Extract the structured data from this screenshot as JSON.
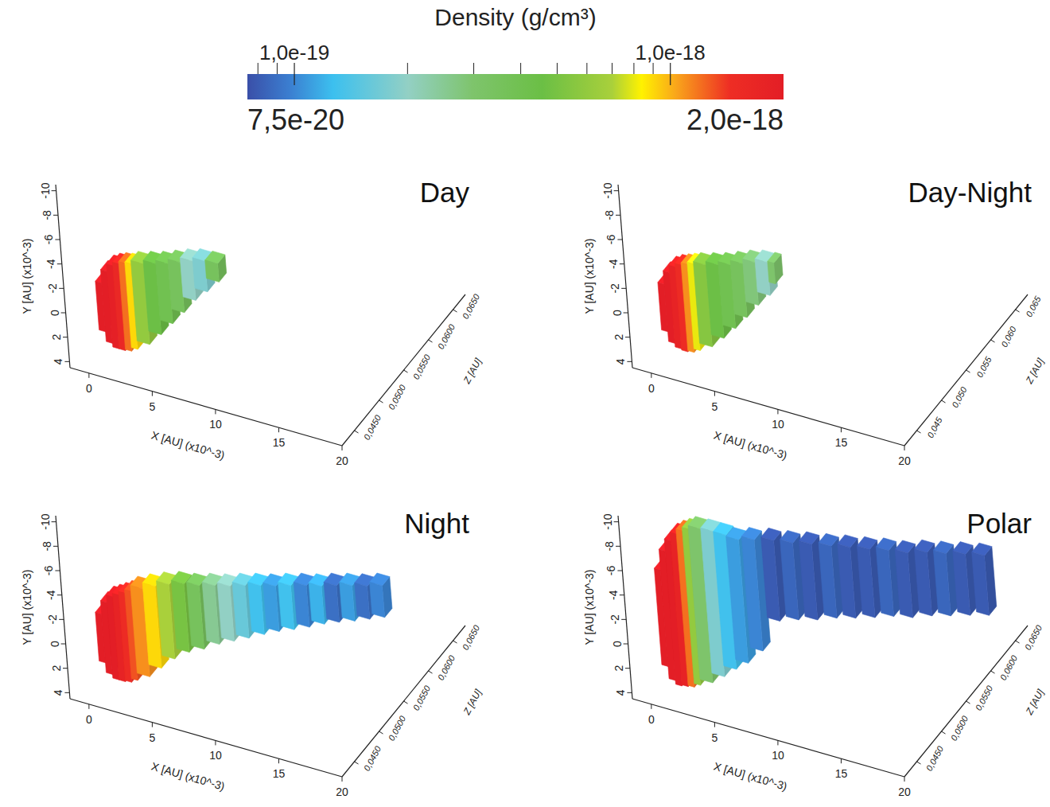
{
  "colorbar": {
    "title": "Density (g/cm³)",
    "log": true,
    "range": [
      7.5e-20,
      2e-18
    ],
    "ticks": [
      {
        "value": 1e-19,
        "label": "1,0e-19"
      },
      {
        "value": 1e-18,
        "label": "1,0e-18"
      }
    ],
    "minor_ticks": [
      8e-20,
      9e-20,
      2e-19,
      3e-19,
      4e-19,
      5e-19,
      6e-19,
      7e-19,
      8e-19,
      9e-19
    ],
    "end_ticks": [
      {
        "value": 7.5e-20,
        "label": "7,5e-20"
      },
      {
        "value": 2e-18,
        "label": "2,0e-18"
      }
    ]
  },
  "chart_data": [
    {
      "type": "voxel3d",
      "title": "Day",
      "xlabel": "X [AU] (x10^-3)",
      "ylabel": "Y [AU] (x10^-3)",
      "zlabel": "Z [AU]",
      "xlim": [
        -1.5,
        20
      ],
      "ylim": [
        -10.5,
        4.5
      ],
      "zlim": [
        0.0425,
        0.0675
      ],
      "xticks": [
        0,
        5,
        10,
        15,
        20
      ],
      "yticks": [
        -10,
        -8,
        -6,
        -4,
        -2,
        0,
        2,
        4
      ],
      "zticks": [
        {
          "value": 0.045,
          "label": "0,0450"
        },
        {
          "value": 0.05,
          "label": "0,0500"
        },
        {
          "value": 0.055,
          "label": "0,0550"
        },
        {
          "value": 0.06,
          "label": "0,0600"
        },
        {
          "value": 0.065,
          "label": "0,0650"
        }
      ],
      "x_edges": [
        0,
        0.5,
        1,
        1.5,
        2,
        2.5,
        3,
        4,
        5,
        6,
        7,
        8,
        9,
        10
      ],
      "y_lo": [
        -1.8,
        -2.9,
        -3.5,
        -3.8,
        -4.0,
        -4.1,
        -4.4,
        -4.7,
        -5.0,
        -5.4,
        -5.8,
        -6.1,
        -6.2
      ],
      "y_hi": [
        2.2,
        3.0,
        3.3,
        3.3,
        3.2,
        2.9,
        2.2,
        1.1,
        -0.1,
        -1.3,
        -2.6,
        -3.6,
        -4.7
      ],
      "z": [
        0.045,
        0.045,
        0.045,
        0.045,
        0.045,
        0.045,
        0.045,
        0.045,
        0.045,
        0.045,
        0.045,
        0.045,
        0.045
      ],
      "density": [
        2e-18,
        2e-18,
        1.9e-18,
        1.6e-18,
        1.2e-18,
        9e-19,
        6e-19,
        4.5e-19,
        4e-19,
        3.5e-19,
        2e-19,
        1.8e-19,
        3.5e-19
      ]
    },
    {
      "type": "voxel3d",
      "title": "Day-Night",
      "xlabel": "X [AU] (x10^-3)",
      "ylabel": "Y [AU] (x10^-3)",
      "zlabel": "Z [AU]",
      "xlim": [
        -1.5,
        20
      ],
      "ylim": [
        -10.5,
        4.5
      ],
      "zlim": [
        0.0425,
        0.0675
      ],
      "xticks": [
        0,
        5,
        10,
        15,
        20
      ],
      "yticks": [
        -10,
        -8,
        -6,
        -4,
        -2,
        0,
        2,
        4
      ],
      "zticks": [
        {
          "value": 0.045,
          "label": "0,045"
        },
        {
          "value": 0.05,
          "label": "0,050"
        },
        {
          "value": 0.055,
          "label": "0,055"
        },
        {
          "value": 0.06,
          "label": "0,060"
        },
        {
          "value": 0.065,
          "label": "0,065"
        }
      ],
      "x_edges": [
        0,
        0.5,
        1,
        1.5,
        2,
        2.5,
        3,
        4,
        5,
        6,
        7,
        8,
        9,
        9.5
      ],
      "y_lo": [
        -1.7,
        -2.8,
        -3.4,
        -3.7,
        -3.9,
        -4.1,
        -4.3,
        -4.6,
        -4.9,
        -5.3,
        -5.7,
        -6.0,
        -6.1
      ],
      "y_hi": [
        2.2,
        3.0,
        3.3,
        3.4,
        3.3,
        3.0,
        2.4,
        1.4,
        0.3,
        -0.9,
        -2.2,
        -3.3,
        -4.4
      ],
      "z": [
        0.045,
        0.045,
        0.045,
        0.045,
        0.045,
        0.045,
        0.045,
        0.045,
        0.045,
        0.045,
        0.045,
        0.045,
        0.045
      ],
      "density": [
        2e-18,
        2e-18,
        1.8e-18,
        1.5e-18,
        1.1e-18,
        8e-19,
        5.5e-19,
        4.5e-19,
        4e-19,
        3.5e-19,
        2.8e-19,
        2e-19,
        3e-19
      ]
    },
    {
      "type": "voxel3d",
      "title": "Night",
      "xlabel": "X [AU] (x10^-3)",
      "ylabel": "Y [AU] (x10^-3)",
      "zlabel": "Z [AU]",
      "xlim": [
        -1.5,
        20
      ],
      "ylim": [
        -10.5,
        4.5
      ],
      "zlim": [
        0.0425,
        0.0675
      ],
      "xticks": [
        0,
        5,
        10,
        15,
        20
      ],
      "yticks": [
        -10,
        -8,
        -6,
        -4,
        -2,
        0,
        2,
        4
      ],
      "zticks": [
        {
          "value": 0.045,
          "label": "0,0450"
        },
        {
          "value": 0.05,
          "label": "0,0500"
        },
        {
          "value": 0.055,
          "label": "0,0550"
        },
        {
          "value": 0.06,
          "label": "0,0600"
        },
        {
          "value": 0.065,
          "label": "0,0650"
        }
      ],
      "x_edges": [
        0,
        0.5,
        1,
        1.5,
        2,
        2.5,
        3,
        4,
        5,
        6,
        7,
        8,
        9,
        10,
        11,
        12,
        13,
        14,
        15,
        16,
        17,
        18,
        19,
        20
      ],
      "y_lo": [
        -1.8,
        -2.9,
        -3.5,
        -3.8,
        -4.1,
        -4.4,
        -4.9,
        -5.4,
        -5.7,
        -5.8,
        -5.7,
        -5.7,
        -5.7,
        -5.8,
        -5.8,
        -5.8,
        -5.9,
        -5.9,
        -5.9,
        -6.0,
        -6.0,
        -6.0,
        -6.1
      ],
      "y_hi": [
        2.2,
        3.0,
        3.3,
        3.3,
        3.2,
        2.9,
        2.3,
        1.3,
        0.4,
        -0.2,
        -0.5,
        -0.9,
        -1.2,
        -1.5,
        -1.8,
        -2.1,
        -2.3,
        -2.5,
        -2.8,
        -3.0,
        -3.1,
        -3.3,
        -3.5
      ],
      "z": [
        0.045,
        0.045,
        0.045,
        0.045,
        0.045,
        0.045,
        0.045,
        0.045,
        0.0453,
        0.0458,
        0.0463,
        0.0469,
        0.0474,
        0.0479,
        0.0485,
        0.049,
        0.0495,
        0.0501,
        0.0506,
        0.0511,
        0.0517,
        0.0522,
        0.0527
      ],
      "density": [
        2e-18,
        2e-18,
        2e-18,
        1.8e-18,
        1.5e-18,
        1.3e-18,
        1.1e-18,
        9e-19,
        7e-19,
        5e-19,
        3.5e-19,
        2.5e-19,
        2e-19,
        1.6e-19,
        1.3e-19,
        1.1e-19,
        1.3e-19,
        1e-19,
        1.2e-19,
        9e-20,
        1.1e-19,
        9e-20,
        1e-19
      ]
    },
    {
      "type": "voxel3d",
      "title": "Polar",
      "xlabel": "X [AU] (x10^-3)",
      "ylabel": "Y [AU] (x10^-3)",
      "zlabel": "Z [AU]",
      "xlim": [
        -1.5,
        20
      ],
      "ylim": [
        -10.5,
        4.5
      ],
      "zlim": [
        0.0425,
        0.0675
      ],
      "xticks": [
        0,
        5,
        10,
        15,
        20
      ],
      "yticks": [
        -10,
        -8,
        -6,
        -4,
        -2,
        0,
        2,
        4
      ],
      "zticks": [
        {
          "value": 0.045,
          "label": "0,0450"
        },
        {
          "value": 0.05,
          "label": "0,0500"
        },
        {
          "value": 0.055,
          "label": "0,0550"
        },
        {
          "value": 0.06,
          "label": "0,0600"
        },
        {
          "value": 0.065,
          "label": "0,0650"
        }
      ],
      "x_edges": [
        0,
        0.5,
        1,
        1.5,
        2,
        2.5,
        3,
        4,
        5,
        6,
        7,
        8,
        9,
        10,
        11,
        12,
        13,
        14,
        15,
        16,
        17,
        18,
        19,
        20
      ],
      "y_lo": [
        -5.4,
        -7.1,
        -8.1,
        -8.8,
        -9.2,
        -9.5,
        -9.8,
        -9.9,
        -9.9,
        -9.8,
        -9.8,
        -9.4,
        -8.9,
        -8.5,
        -8.0,
        -7.6,
        -7.1,
        -6.7,
        -6.2,
        -5.9,
        -5.5,
        -5.1,
        -4.7
      ],
      "y_hi": [
        2.5,
        3.5,
        3.8,
        3.7,
        3.6,
        3.3,
        2.8,
        2.0,
        1.1,
        0.3,
        -0.7,
        -2.8,
        -2.6,
        -2.3,
        -2.1,
        -1.8,
        -1.5,
        -1.3,
        -0.9,
        -0.7,
        -0.4,
        -0.1,
        0.2
      ],
      "z": [
        0.045,
        0.045,
        0.045,
        0.045,
        0.045,
        0.045,
        0.045,
        0.045,
        0.045,
        0.045,
        0.0456,
        0.0469,
        0.0481,
        0.0493,
        0.0506,
        0.0518,
        0.0531,
        0.0543,
        0.0555,
        0.0568,
        0.058,
        0.0593,
        0.0605
      ],
      "density": [
        2e-18,
        2e-18,
        2e-18,
        1.8e-18,
        1.2e-18,
        6e-19,
        3e-19,
        1.8e-19,
        1.3e-19,
        1.1e-19,
        1e-19,
        8e-20,
        8.5e-20,
        8e-20,
        8.5e-20,
        8e-20,
        8e-20,
        8.5e-20,
        8e-20,
        8e-20,
        8.5e-20,
        8e-20,
        8e-20
      ]
    }
  ]
}
